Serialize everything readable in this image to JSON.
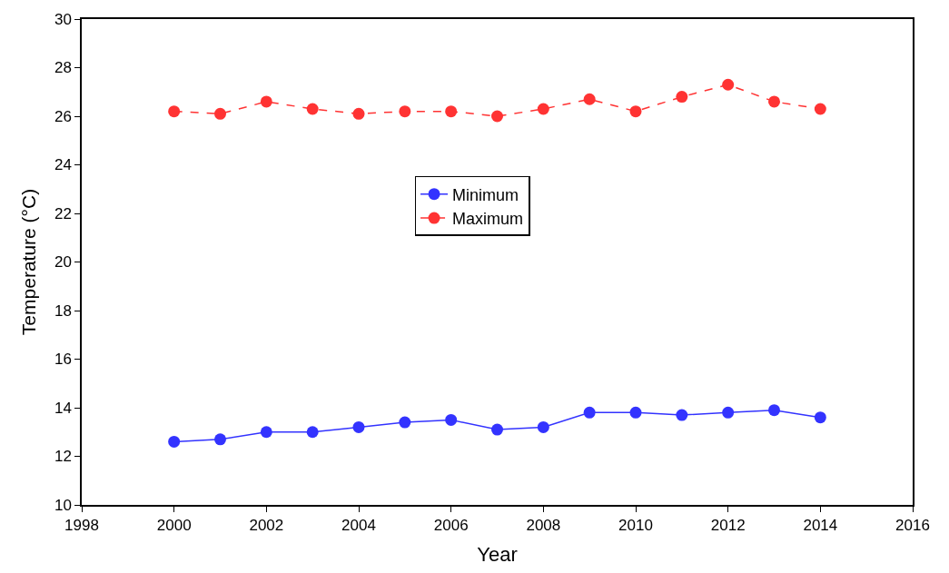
{
  "chart_data": {
    "type": "line",
    "xlabel": "Year",
    "ylabel": "Temperature (°C)",
    "x": [
      2000,
      2001,
      2002,
      2003,
      2004,
      2005,
      2006,
      2007,
      2008,
      2009,
      2010,
      2011,
      2012,
      2013,
      2014
    ],
    "series": [
      {
        "name": "Minimum",
        "color": "#3333ff",
        "line_style": "solid",
        "values": [
          12.6,
          12.7,
          13.0,
          13.0,
          13.2,
          13.4,
          13.5,
          13.1,
          13.2,
          13.8,
          13.8,
          13.7,
          13.8,
          13.9,
          13.6
        ]
      },
      {
        "name": "Maximum",
        "color": "#ff3333",
        "line_style": "dashed",
        "values": [
          26.2,
          26.1,
          26.6,
          26.3,
          26.1,
          26.2,
          26.2,
          26.0,
          26.3,
          26.7,
          26.2,
          26.8,
          27.3,
          26.6,
          26.3
        ]
      }
    ],
    "xlim": [
      1998,
      2016
    ],
    "xticks": [
      1998,
      2000,
      2002,
      2004,
      2006,
      2008,
      2010,
      2012,
      2014,
      2016
    ],
    "ylim": [
      10,
      30
    ],
    "yticks": [
      10,
      12,
      14,
      16,
      18,
      20,
      22,
      24,
      26,
      28,
      30
    ],
    "marker": "circle",
    "legend": "center"
  }
}
